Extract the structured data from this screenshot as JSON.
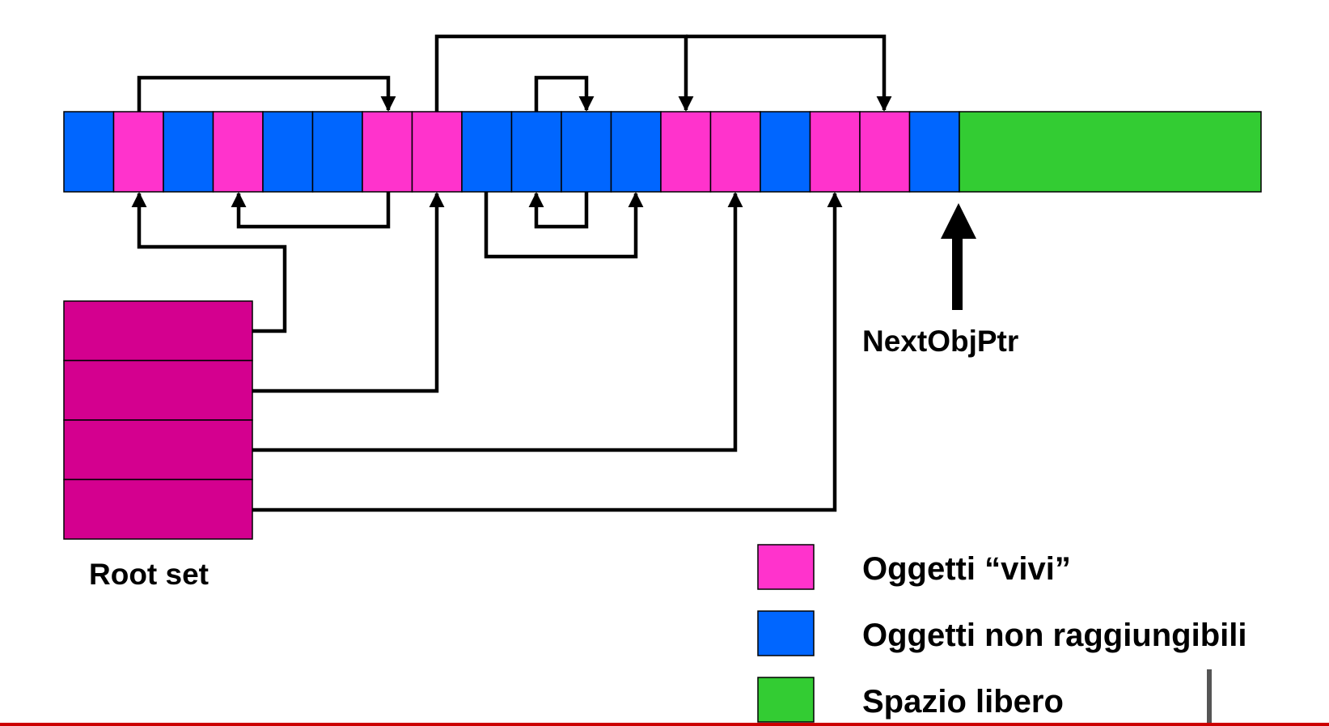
{
  "colors": {
    "live": "#ff33cc",
    "unreachable": "#0066ff",
    "free": "#33cc33",
    "root": "#d4008f",
    "line": "#000000",
    "bottom_rule": "#cc0000"
  },
  "heap": {
    "cells": [
      "unreachable",
      "live",
      "unreachable",
      "live",
      "unreachable",
      "unreachable",
      "live",
      "live",
      "unreachable",
      "unreachable",
      "unreachable",
      "unreachable",
      "live",
      "live",
      "unreachable",
      "live",
      "live",
      "unreachable"
    ],
    "has_free_space": true
  },
  "root_set": {
    "label": "Root set",
    "entry_count": 4
  },
  "pointer": {
    "label": "NextObjPtr"
  },
  "legend": [
    {
      "key": "live",
      "label": "Oggetti “vivi”"
    },
    {
      "key": "unreachable",
      "label": "Oggetti non raggiungibili"
    },
    {
      "key": "free",
      "label": "Spazio libero"
    }
  ]
}
